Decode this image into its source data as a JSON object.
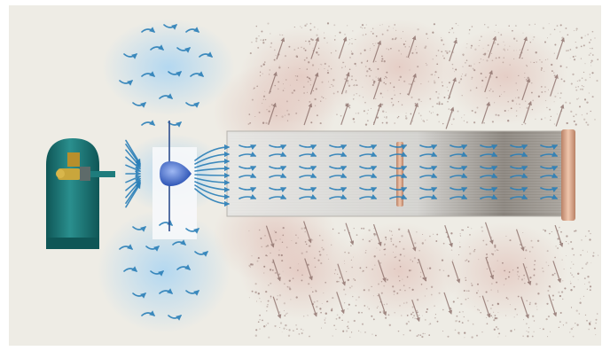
{
  "diagram": {
    "components": [
      {
        "icon": "gas-cylinder-icon"
      },
      {
        "icon": "valve-icon"
      },
      {
        "icon": "nozzle-icon"
      },
      {
        "icon": "droplet-icon"
      },
      {
        "icon": "tube-icon"
      },
      {
        "icon": "inner-baffle-icon"
      },
      {
        "icon": "end-cap-icon"
      }
    ],
    "colors": {
      "background": "#eeece5",
      "cylinder": "#1f7c7c",
      "cylinder_dark": "#0f5656",
      "valve": "#c9a63c",
      "flow_arrow": "#2a7fb8",
      "glow": "#a9d4f2",
      "droplet": "#3f71d8",
      "tube": "#d8d8d6",
      "tube_dark": "#6f6a63",
      "particle": "#8c6f6a",
      "particle_haze": "#e2c4bc",
      "end_cap": "#d9a98c"
    }
  }
}
